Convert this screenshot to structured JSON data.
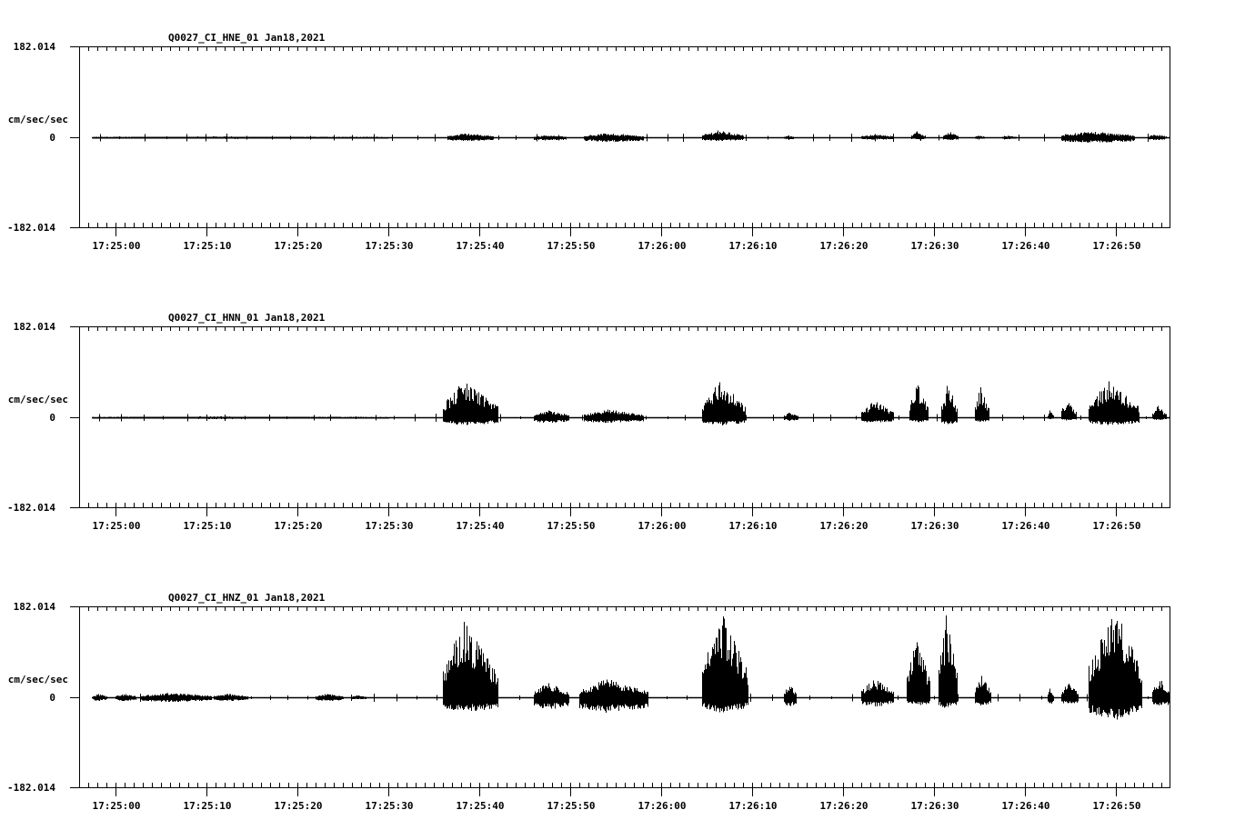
{
  "page": {
    "background": "#ffffff",
    "foreground": "#000000"
  },
  "chart_data": [
    {
      "type": "line",
      "title": "Q0027_CI_HNE_01  Jan18,2021",
      "station": "Q0027_CI_HNE_01",
      "date": "Jan18,2021",
      "ylabel": "cm/sec/sec",
      "ylim": [
        -182.014,
        182.014
      ],
      "y_tick_labels": [
        "182.014",
        "0",
        "-182.014"
      ],
      "xlabel": "",
      "x_tick_labels": [
        "17:25:00",
        "17:25:10",
        "17:25:20",
        "17:25:30",
        "17:25:40",
        "17:25:50",
        "17:26:00",
        "17:26:10",
        "17:26:20",
        "17:26:30",
        "17:26:40",
        "17:26:50"
      ],
      "x_range_seconds_from_172500": [
        -4,
        115.9
      ],
      "grid": false,
      "envelope_segments": [
        {
          "t0": -2.5,
          "t1": 30,
          "up": 1.5,
          "dn": 1.5
        },
        {
          "t0": 36.5,
          "t1": 41.5,
          "up": 8,
          "dn": 6
        },
        {
          "t0": 46,
          "t1": 49.5,
          "up": 4,
          "dn": 5
        },
        {
          "t0": 51.5,
          "t1": 58,
          "up": 8,
          "dn": 8
        },
        {
          "t0": 64.5,
          "t1": 69,
          "up": 14,
          "dn": 6
        },
        {
          "t0": 73.5,
          "t1": 74.5,
          "up": 3,
          "dn": 3
        },
        {
          "t0": 82,
          "t1": 85.5,
          "up": 6,
          "dn": 3
        },
        {
          "t0": 87.5,
          "t1": 89,
          "up": 12,
          "dn": 3
        },
        {
          "t0": 91,
          "t1": 92.5,
          "up": 12,
          "dn": 4
        },
        {
          "t0": 94.5,
          "t1": 95.5,
          "up": 4,
          "dn": 2
        },
        {
          "t0": 97.5,
          "t1": 99,
          "up": 3,
          "dn": 2
        },
        {
          "t0": 104,
          "t1": 112,
          "up": 12,
          "dn": 10
        },
        {
          "t0": 113.5,
          "t1": 115.5,
          "up": 6,
          "dn": 4
        }
      ]
    },
    {
      "type": "line",
      "title": "Q0027_CI_HNN_01  Jan18,2021",
      "station": "Q0027_CI_HNN_01",
      "date": "Jan18,2021",
      "ylabel": "cm/sec/sec",
      "ylim": [
        -182.014,
        182.014
      ],
      "y_tick_labels": [
        "182.014",
        "0",
        "-182.014"
      ],
      "xlabel": "",
      "x_tick_labels": [
        "17:25:00",
        "17:25:10",
        "17:25:20",
        "17:25:30",
        "17:25:40",
        "17:25:50",
        "17:26:00",
        "17:26:10",
        "17:26:20",
        "17:26:30",
        "17:26:40",
        "17:26:50"
      ],
      "x_range_seconds_from_172500": [
        -4,
        115.9
      ],
      "grid": false,
      "envelope_segments": [
        {
          "t0": -2.5,
          "t1": 30,
          "up": 1.5,
          "dn": 1.5
        },
        {
          "t0": 36,
          "t1": 42,
          "up": 73,
          "dn": 15,
          "peak_t": 38.2
        },
        {
          "t0": 46,
          "t1": 49.8,
          "up": 14,
          "dn": 10
        },
        {
          "t0": 51.5,
          "t1": 58,
          "up": 16,
          "dn": 10
        },
        {
          "t0": 64.5,
          "t1": 69.2,
          "up": 75,
          "dn": 15
        },
        {
          "t0": 73.5,
          "t1": 75,
          "up": 10,
          "dn": 6
        },
        {
          "t0": 82,
          "t1": 85.5,
          "up": 34,
          "dn": 10
        },
        {
          "t0": 87.3,
          "t1": 89.3,
          "up": 68,
          "dn": 10
        },
        {
          "t0": 90.8,
          "t1": 92.5,
          "up": 68,
          "dn": 14
        },
        {
          "t0": 94.5,
          "t1": 96,
          "up": 63,
          "dn": 8
        },
        {
          "t0": 102.5,
          "t1": 103.1,
          "up": 16,
          "dn": 2
        },
        {
          "t0": 104,
          "t1": 105.6,
          "up": 40,
          "dn": 4
        },
        {
          "t0": 107,
          "t1": 112.5,
          "up": 74,
          "dn": 15
        },
        {
          "t0": 114,
          "t1": 115.5,
          "up": 23,
          "dn": 4
        }
      ]
    },
    {
      "type": "line",
      "title": "Q0027_CI_HNZ_01  Jan18,2021",
      "station": "Q0027_CI_HNZ_01",
      "date": "Jan18,2021",
      "ylabel": "cm/sec/sec",
      "ylim": [
        -182.014,
        182.014
      ],
      "y_tick_labels": [
        "182.014",
        "0",
        "-182.014"
      ],
      "xlabel": "",
      "x_tick_labels": [
        "17:25:00",
        "17:25:10",
        "17:25:20",
        "17:25:30",
        "17:25:40",
        "17:25:50",
        "17:26:00",
        "17:26:10",
        "17:26:20",
        "17:26:30",
        "17:26:40",
        "17:26:50"
      ],
      "x_range_seconds_from_172500": [
        -4,
        115.9
      ],
      "grid": false,
      "envelope_segments": [
        {
          "t0": -2.5,
          "t1": -1,
          "up": 7,
          "dn": 6
        },
        {
          "t0": 0,
          "t1": 2.2,
          "up": 7,
          "dn": 6
        },
        {
          "t0": 2.8,
          "t1": 10.5,
          "up": 9,
          "dn": 8
        },
        {
          "t0": 10.8,
          "t1": 14.5,
          "up": 7,
          "dn": 6
        },
        {
          "t0": 22,
          "t1": 25,
          "up": 7,
          "dn": 6
        },
        {
          "t0": 26,
          "t1": 27.5,
          "up": 4,
          "dn": 3
        },
        {
          "t0": 36,
          "t1": 42,
          "up": 155,
          "dn": 30,
          "peak_t": 38.2
        },
        {
          "t0": 46,
          "t1": 49.8,
          "up": 30,
          "dn": 24
        },
        {
          "t0": 51,
          "t1": 58.5,
          "up": 38,
          "dn": 30
        },
        {
          "t0": 64.5,
          "t1": 69.5,
          "up": 175,
          "dn": 30
        },
        {
          "t0": 73.5,
          "t1": 74.8,
          "up": 28,
          "dn": 18
        },
        {
          "t0": 82,
          "t1": 85.5,
          "up": 38,
          "dn": 18
        },
        {
          "t0": 87,
          "t1": 89.5,
          "up": 120,
          "dn": 16
        },
        {
          "t0": 90.5,
          "t1": 92.5,
          "up": 165,
          "dn": 22
        },
        {
          "t0": 94.5,
          "t1": 96.2,
          "up": 44,
          "dn": 16
        },
        {
          "t0": 102.5,
          "t1": 103.1,
          "up": 20,
          "dn": 16
        },
        {
          "t0": 104,
          "t1": 105.8,
          "up": 30,
          "dn": 14
        },
        {
          "t0": 107,
          "t1": 112.8,
          "up": 182,
          "dn": 45,
          "peak_t": 109.8
        },
        {
          "t0": 114,
          "t1": 115.9,
          "up": 40,
          "dn": 20
        }
      ]
    }
  ]
}
